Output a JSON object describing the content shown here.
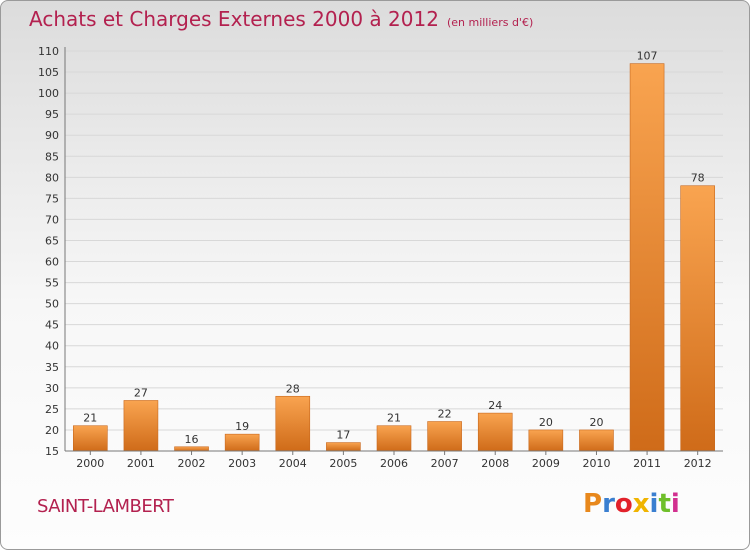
{
  "header": {
    "title": "Achats et Charges Externes 2000 à 2012",
    "unit": "(en milliers d'€)"
  },
  "footer": {
    "commune": "SAINT-LAMBERT",
    "logo": "Proxiti",
    "logo_letter_colors": [
      "#e8881c",
      "#3a7fd0",
      "#e2222b",
      "#f0b400",
      "#3a7fd0",
      "#6fbf2a",
      "#d2308f"
    ]
  },
  "colors": {
    "bar_fill": "#f4963a",
    "bar_edge": "#c8681d",
    "title": "#b3214f",
    "grid": "#d8d8d8",
    "axis_text": "#333333"
  },
  "chart_data": {
    "type": "bar",
    "title": "Achats et Charges Externes 2000 à 2012",
    "xlabel": "",
    "ylabel": "",
    "categories": [
      "2000",
      "2001",
      "2002",
      "2003",
      "2004",
      "2005",
      "2006",
      "2007",
      "2008",
      "2009",
      "2010",
      "2011",
      "2012"
    ],
    "values": [
      21,
      27,
      16,
      19,
      28,
      17,
      21,
      22,
      24,
      20,
      20,
      107,
      78
    ],
    "ylim": [
      15,
      110
    ],
    "yticks": [
      15,
      20,
      25,
      30,
      35,
      40,
      45,
      50,
      55,
      60,
      65,
      70,
      75,
      80,
      85,
      90,
      95,
      100,
      105,
      110
    ],
    "grid": true,
    "legend": "none"
  }
}
